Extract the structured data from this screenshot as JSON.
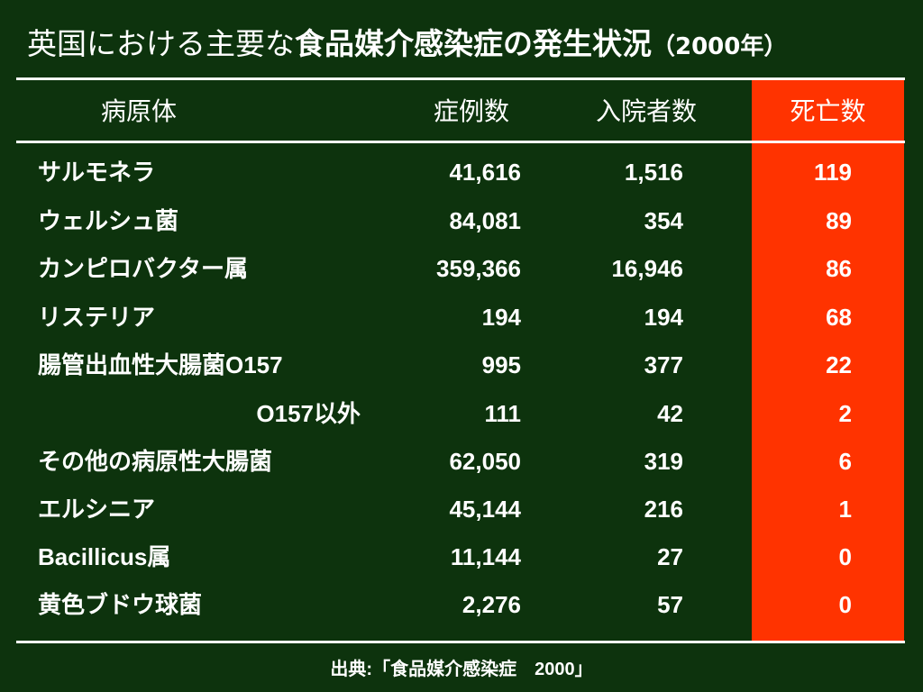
{
  "title": {
    "part_normal": "英国における主要な",
    "part_bold": "食品媒介感染症の発生状況",
    "part_year": "（2000年）"
  },
  "colors": {
    "background": "#0d330d",
    "death_highlight": "#ff3300",
    "text": "#ffffff"
  },
  "table": {
    "headers": {
      "pathogen": "病原体",
      "cases": "症例数",
      "hospitalized": "入院者数",
      "deaths": "死亡数"
    },
    "rows": [
      {
        "name": "サルモネラ",
        "cases": "41,616",
        "hospitalized": "1,516",
        "deaths": "119"
      },
      {
        "name": "ウェルシュ菌",
        "cases": "84,081",
        "hospitalized": "354",
        "deaths": "89"
      },
      {
        "name": "カンピロバクター属",
        "cases": "359,366",
        "hospitalized": "16,946",
        "deaths": "86"
      },
      {
        "name": "リステリア",
        "cases": "194",
        "hospitalized": "194",
        "deaths": "68"
      },
      {
        "name": "腸管出血性大腸菌O157",
        "cases": "995",
        "hospitalized": "377",
        "deaths": "22"
      },
      {
        "name": "O157以外",
        "cases": "111",
        "hospitalized": "42",
        "deaths": "2"
      },
      {
        "name": "その他の病原性大腸菌",
        "cases": "62,050",
        "hospitalized": "319",
        "deaths": "6"
      },
      {
        "name": "エルシニア",
        "cases": "45,144",
        "hospitalized": "216",
        "deaths": "1"
      },
      {
        "name": "Bacillicus属",
        "cases": "11,144",
        "hospitalized": "27",
        "deaths": "0"
      },
      {
        "name": "黄色ブドウ球菌",
        "cases": "2,276",
        "hospitalized": "57",
        "deaths": "0"
      }
    ]
  },
  "source": "出典:「食品媒介感染症　2000」"
}
